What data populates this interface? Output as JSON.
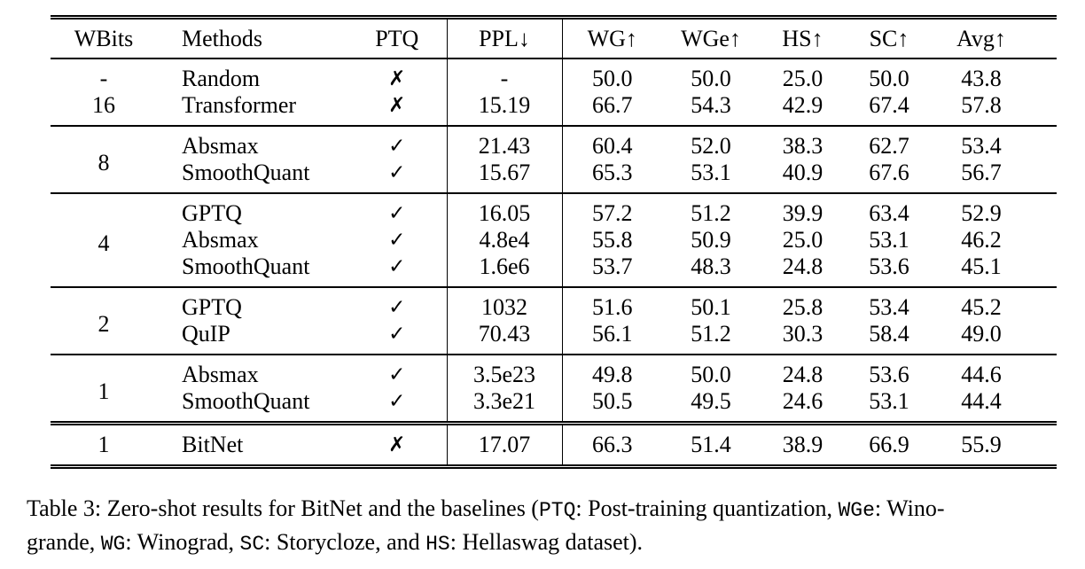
{
  "page": {
    "background_color": "#ffffff",
    "text_color": "#000000"
  },
  "table": {
    "headers": [
      {
        "key": "wbits",
        "label": "WBits"
      },
      {
        "key": "method",
        "label": "Methods"
      },
      {
        "key": "ptq",
        "label": "PTQ"
      },
      {
        "key": "ppl",
        "label": "PPL↓"
      },
      {
        "key": "wg",
        "label": "WG↑"
      },
      {
        "key": "wge",
        "label": "WGe↑"
      },
      {
        "key": "hs",
        "label": "HS↑"
      },
      {
        "key": "sc",
        "label": "SC↑"
      },
      {
        "key": "avg",
        "label": "Avg↑"
      }
    ],
    "check_glyph": "✓",
    "cross_glyph": "✗",
    "sections": [
      {
        "rows": [
          {
            "wbits": "-",
            "method": "Random",
            "ptq": "✗",
            "ppl": "-",
            "wg": "50.0",
            "wge": "50.0",
            "hs": "25.0",
            "sc": "50.0",
            "avg": "43.8"
          },
          {
            "wbits": "16",
            "method": "Transformer",
            "ptq": "✗",
            "ppl": "15.19",
            "wg": "66.7",
            "wge": "54.3",
            "hs": "42.9",
            "sc": "67.4",
            "avg": "57.8"
          }
        ]
      },
      {
        "wbits": "8",
        "rows": [
          {
            "method": "Absmax",
            "ptq": "✓",
            "ppl": "21.43",
            "wg": "60.4",
            "wge": "52.0",
            "hs": "38.3",
            "sc": "62.7",
            "avg": "53.4"
          },
          {
            "method": "SmoothQuant",
            "ptq": "✓",
            "ppl": "15.67",
            "wg": "65.3",
            "wge": "53.1",
            "hs": "40.9",
            "sc": "67.6",
            "avg": "56.7"
          }
        ]
      },
      {
        "wbits": "4",
        "rows": [
          {
            "method": "GPTQ",
            "ptq": "✓",
            "ppl": "16.05",
            "wg": "57.2",
            "wge": "51.2",
            "hs": "39.9",
            "sc": "63.4",
            "avg": "52.9"
          },
          {
            "method": "Absmax",
            "ptq": "✓",
            "ppl": "4.8e4",
            "wg": "55.8",
            "wge": "50.9",
            "hs": "25.0",
            "sc": "53.1",
            "avg": "46.2"
          },
          {
            "method": "SmoothQuant",
            "ptq": "✓",
            "ppl": "1.6e6",
            "wg": "53.7",
            "wge": "48.3",
            "hs": "24.8",
            "sc": "53.6",
            "avg": "45.1"
          }
        ]
      },
      {
        "wbits": "2",
        "rows": [
          {
            "method": "GPTQ",
            "ptq": "✓",
            "ppl": "1032",
            "wg": "51.6",
            "wge": "50.1",
            "hs": "25.8",
            "sc": "53.4",
            "avg": "45.2"
          },
          {
            "method": "QuIP",
            "ptq": "✓",
            "ppl": "70.43",
            "wg": "56.1",
            "wge": "51.2",
            "hs": "30.3",
            "sc": "58.4",
            "avg": "49.0"
          }
        ]
      },
      {
        "wbits": "1",
        "rows": [
          {
            "method": "Absmax",
            "ptq": "✓",
            "ppl": "3.5e23",
            "wg": "49.8",
            "wge": "50.0",
            "hs": "24.8",
            "sc": "53.6",
            "avg": "44.6"
          },
          {
            "method": "SmoothQuant",
            "ptq": "✓",
            "ppl": "3.3e21",
            "wg": "50.5",
            "wge": "49.5",
            "hs": "24.6",
            "sc": "53.1",
            "avg": "44.4"
          }
        ]
      },
      {
        "wbits": "1",
        "double_top": true,
        "last": true,
        "rows": [
          {
            "method": "BitNet",
            "bold": true,
            "ptq": "✗",
            "ppl": "17.07",
            "wg": "66.3",
            "wge": "51.4",
            "hs": "38.9",
            "sc": "66.9",
            "avg": "55.9"
          }
        ]
      }
    ]
  },
  "caption": {
    "lines": [
      [
        {
          "text": "Table 3: Zero-shot results for BitNet and the baselines ("
        },
        {
          "text": "PTQ",
          "mono": true
        },
        {
          "text": ": Post-training quantization, "
        },
        {
          "text": "WGe",
          "mono": true
        },
        {
          "text": ": Wino-"
        }
      ],
      [
        {
          "text": "grande, "
        },
        {
          "text": "WG",
          "mono": true
        },
        {
          "text": ": Winograd, "
        },
        {
          "text": "SC",
          "mono": true
        },
        {
          "text": ": Storycloze, and "
        },
        {
          "text": "HS",
          "mono": true
        },
        {
          "text": ": Hellaswag dataset)."
        }
      ]
    ]
  }
}
